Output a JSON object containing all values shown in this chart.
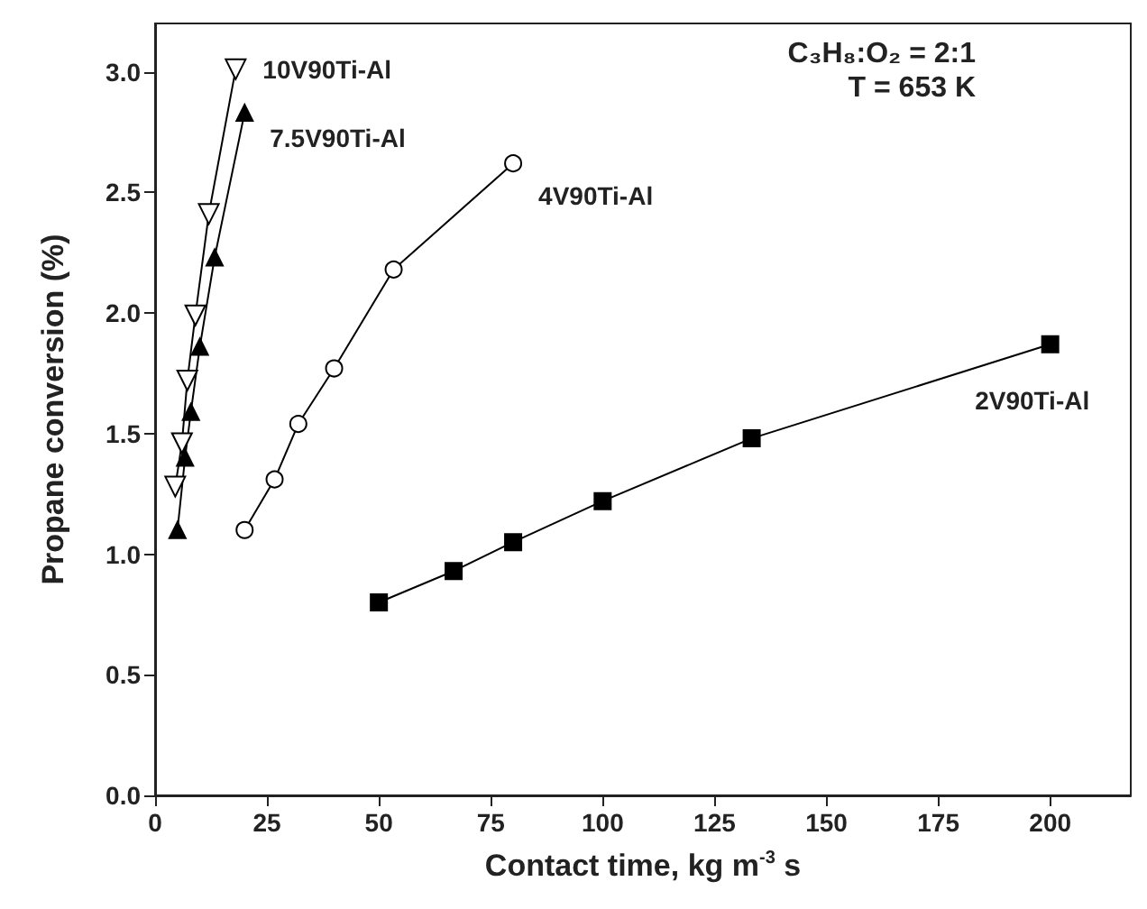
{
  "chart_data": {
    "type": "line",
    "xlabel": "Contact time, kg m$^{-3}$ s",
    "ylabel": "Propane conversion (%)",
    "annotations": [
      "C₃H₈:O₂ = 2:1",
      "T = 653 K"
    ],
    "series": [
      {
        "name": "10V90Ti-Al",
        "color": "#000000",
        "marker": "triangle-down-open",
        "x": [
          4.5,
          6,
          7.2,
          9,
          12,
          18
        ],
        "values": [
          1.28,
          1.46,
          1.72,
          1.99,
          2.41,
          3.01
        ]
      },
      {
        "name": "7.5V90Ti-Al",
        "color": "#000000",
        "marker": "triangle",
        "x": [
          5,
          6.7,
          8,
          10,
          13.3,
          20
        ],
        "values": [
          1.1,
          1.4,
          1.59,
          1.86,
          2.23,
          2.83
        ]
      },
      {
        "name": "4V90Ti-Al",
        "color": "#000000",
        "marker": "circle-open",
        "x": [
          20,
          26.7,
          32,
          40,
          53.3,
          80
        ],
        "values": [
          1.1,
          1.31,
          1.54,
          1.77,
          2.18,
          2.62
        ]
      },
      {
        "name": "2V90Ti-Al",
        "color": "#000000",
        "marker": "square",
        "x": [
          50,
          66.7,
          80,
          100,
          133.3,
          200
        ],
        "values": [
          0.8,
          0.93,
          1.05,
          1.22,
          1.48,
          1.87
        ]
      }
    ],
    "xlim": [
      0,
      218
    ],
    "xticks": [
      0,
      25,
      50,
      75,
      100,
      125,
      150,
      175,
      200
    ],
    "ylim": [
      0,
      3.2
    ],
    "yticks": [
      {
        "value": 0,
        "label": "0.0"
      },
      {
        "value": 0.5,
        "label": "0.5"
      },
      {
        "value": 1,
        "label": "1.0"
      },
      {
        "value": 1.5,
        "label": "1.5"
      },
      {
        "value": 2,
        "label": "2.0"
      },
      {
        "value": 2.5,
        "label": "2.5"
      },
      {
        "value": 3,
        "label": "3.0"
      }
    ],
    "grid": false,
    "legend": false,
    "line_style": "solid"
  }
}
